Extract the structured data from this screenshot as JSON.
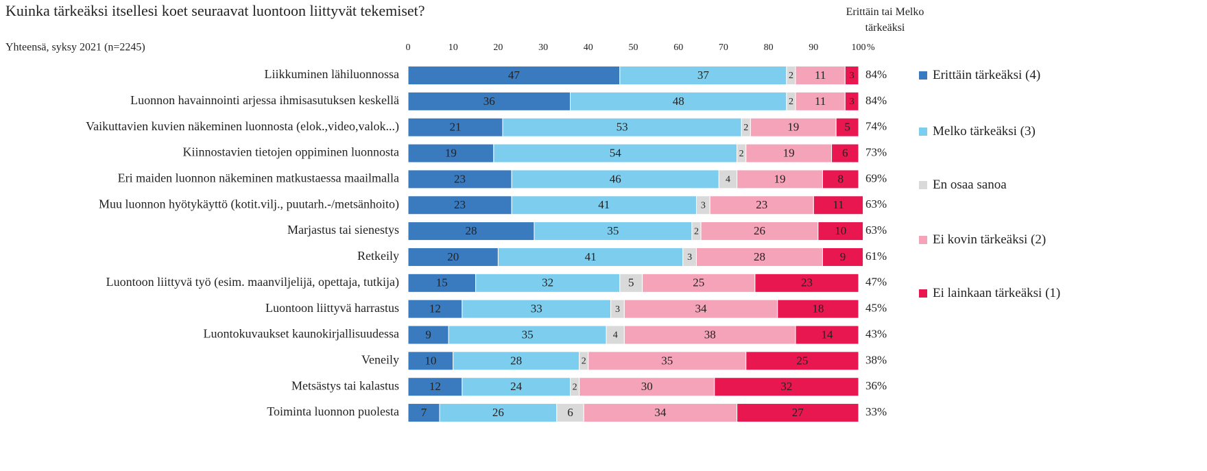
{
  "chart_data": {
    "type": "stacked_bar_horizontal",
    "title": "Kuinka tärkeäksi itsellesi koet seuraavat luontoon liittyvät tekemiset?",
    "subtitle": "Yhteensä, syksy 2021 (n=2245)",
    "xlabel": "%",
    "xlim": [
      0,
      100
    ],
    "xticks": [
      0,
      10,
      20,
      30,
      40,
      50,
      60,
      70,
      80,
      90,
      100
    ],
    "legend_position": "right",
    "categories": [
      "Liikkuminen lähiluonnossa",
      "Luonnon havainnointi arjessa ihmisasutuksen keskellä",
      "Vaikuttavien kuvien näkeminen luonnosta (elok.,video,valok...)",
      "Kiinnostavien tietojen oppiminen luonnosta",
      "Eri maiden luonnon näkeminen matkustaessa maailmalla",
      "Muu luonnon hyötykäyttö (kotit.vilj., puutarh.-/metsänhoito)",
      "Marjastus tai sienestys",
      "Retkeily",
      "Luontoon liittyvä työ (esim. maanviljelijä, opettaja, tutkija)",
      "Luontoon liittyvä harrastus",
      "Luontokuvaukset kaunokirjallisuudessa",
      "Veneily",
      "Metsästys tai kalastus",
      "Toiminta luonnon puolesta"
    ],
    "series": [
      {
        "name": "Erittäin tärkeäksi (4)",
        "color": "#3a7bbf",
        "label_color": "#ffffff",
        "values": [
          47,
          36,
          21,
          19,
          23,
          23,
          28,
          20,
          15,
          12,
          9,
          10,
          12,
          7
        ]
      },
      {
        "name": "Melko tärkeäksi (3)",
        "color": "#7dcdee",
        "label_color": "#222222",
        "values": [
          37,
          48,
          53,
          54,
          46,
          41,
          35,
          41,
          32,
          33,
          35,
          28,
          24,
          26
        ]
      },
      {
        "name": "En osaa sanoa",
        "color": "#d9d9d9",
        "label_color": "#222222",
        "values": [
          2,
          2,
          2,
          2,
          4,
          3,
          2,
          3,
          5,
          3,
          4,
          2,
          2,
          6
        ]
      },
      {
        "name": "Ei kovin tärkeäksi (2)",
        "color": "#f5a3b9",
        "label_color": "#222222",
        "values": [
          11,
          11,
          19,
          19,
          19,
          23,
          26,
          28,
          25,
          34,
          38,
          35,
          30,
          34
        ]
      },
      {
        "name": "Ei lainkaan tärkeäksi (1)",
        "color": "#e8174f",
        "label_color": "#ffffff",
        "values": [
          3,
          3,
          5,
          6,
          8,
          11,
          10,
          9,
          23,
          18,
          14,
          25,
          32,
          27
        ]
      }
    ],
    "totals": {
      "name": "Erittäin tai Melko tärkeäksi",
      "values": [
        84,
        84,
        74,
        73,
        69,
        63,
        63,
        61,
        47,
        45,
        43,
        38,
        36,
        33
      ],
      "value_labels": [
        "84%",
        "84%",
        "74%",
        "73%",
        "69%",
        "63%",
        "63%",
        "61%",
        "47%",
        "45%",
        "43%",
        "38%",
        "36%",
        "33%"
      ]
    }
  }
}
